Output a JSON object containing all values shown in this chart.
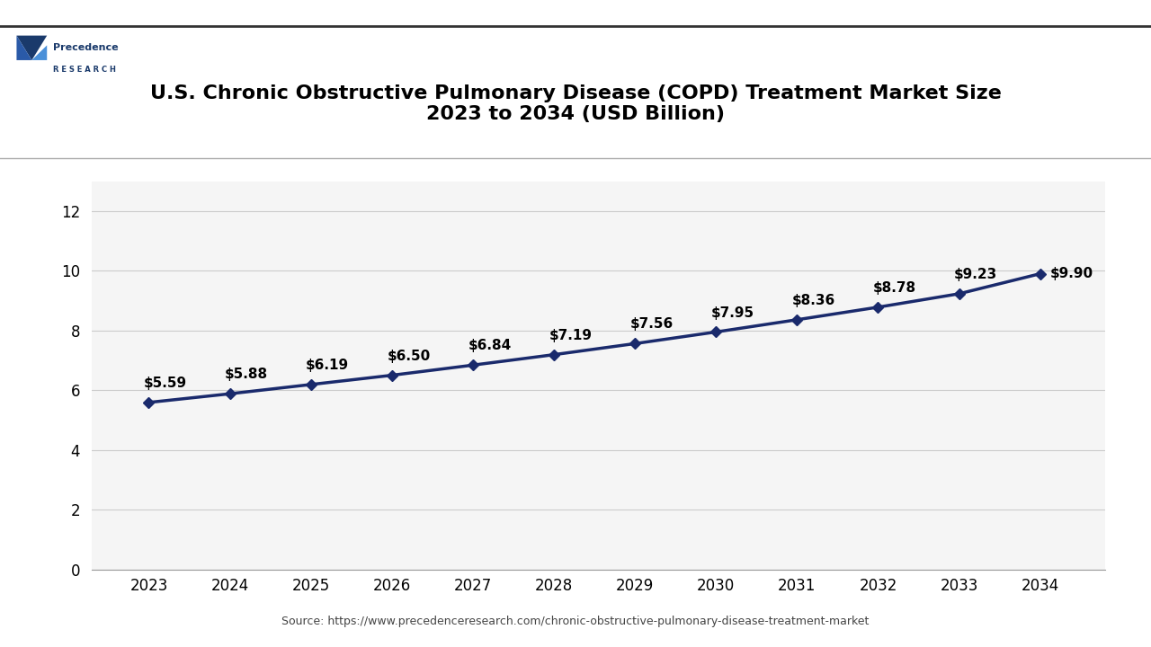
{
  "title": "U.S. Chronic Obstructive Pulmonary Disease (COPD) Treatment Market Size\n2023 to 2034 (USD Billion)",
  "years": [
    2023,
    2024,
    2025,
    2026,
    2027,
    2028,
    2029,
    2030,
    2031,
    2032,
    2033,
    2034
  ],
  "values": [
    5.59,
    5.88,
    6.19,
    6.5,
    6.84,
    7.19,
    7.56,
    7.95,
    8.36,
    8.78,
    9.23,
    9.9
  ],
  "labels": [
    "$5.59",
    "$5.88",
    "$6.19",
    "$6.50",
    "$6.84",
    "$7.19",
    "$7.56",
    "$7.95",
    "$8.36",
    "$8.78",
    "$9.23",
    "$9.90"
  ],
  "line_color": "#1a2a6c",
  "marker_color": "#1a2a6c",
  "background_color": "#ffffff",
  "plot_bg_color": "#f5f5f5",
  "grid_color": "#cccccc",
  "yticks": [
    0,
    2,
    4,
    6,
    8,
    10,
    12
  ],
  "ylim": [
    0,
    13
  ],
  "source_text": "Source: https://www.precedenceresearch.com/chronic-obstructive-pulmonary-disease-treatment-market",
  "title_fontsize": 16,
  "label_fontsize": 11,
  "tick_fontsize": 12,
  "logo_precedence_color": "#1a3a6b",
  "logo_light_blue": "#4a90d9"
}
